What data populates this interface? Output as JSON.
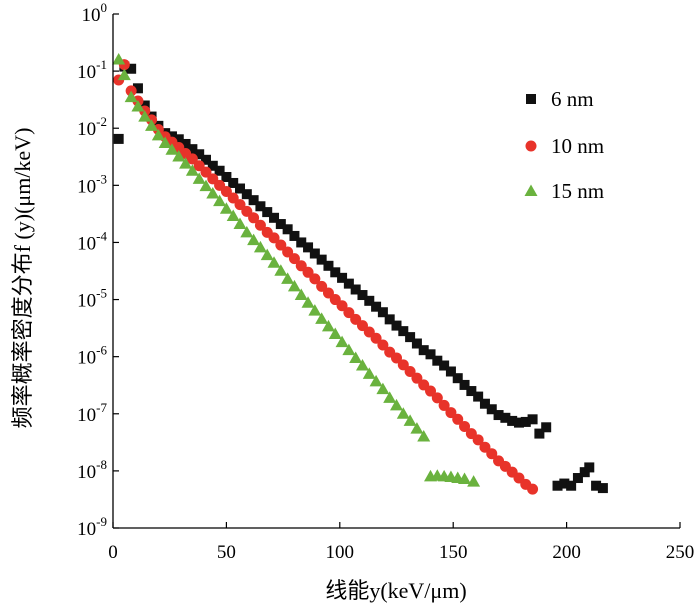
{
  "chart_data": {
    "type": "scatter",
    "xlabel": "线能y(keV/μm)",
    "ylabel": "频率概率密度分布f (y)(μm/keV)",
    "xlim": [
      0,
      250
    ],
    "ylim": [
      1e-09,
      1
    ],
    "yscale": "log",
    "grid": false,
    "legend_position": "top-right",
    "x_ticks": [
      0,
      50,
      100,
      150,
      200,
      250
    ],
    "y_ticks": [
      {
        "value": 1,
        "base": "10",
        "exp": "0"
      },
      {
        "value": 0.1,
        "base": "10",
        "exp": "-1"
      },
      {
        "value": 0.01,
        "base": "10",
        "exp": "-2"
      },
      {
        "value": 0.001,
        "base": "10",
        "exp": "-3"
      },
      {
        "value": 0.0001,
        "base": "10",
        "exp": "-4"
      },
      {
        "value": 1e-05,
        "base": "10",
        "exp": "-5"
      },
      {
        "value": 1e-06,
        "base": "10",
        "exp": "-6"
      },
      {
        "value": 1e-07,
        "base": "10",
        "exp": "-7"
      },
      {
        "value": 1e-08,
        "base": "10",
        "exp": "-8"
      },
      {
        "value": 1e-09,
        "base": "10",
        "exp": "-9"
      }
    ],
    "series": [
      {
        "name": "6 nm",
        "marker": "square",
        "color": "#111111",
        "points": [
          [
            2.5,
            0.0065
          ],
          [
            5,
            0.12
          ],
          [
            8,
            0.11
          ],
          [
            11,
            0.05
          ],
          [
            14,
            0.025
          ],
          [
            17,
            0.016
          ],
          [
            20,
            0.011
          ],
          [
            23,
            0.0082
          ],
          [
            26,
            0.0072
          ],
          [
            29,
            0.0064
          ],
          [
            32,
            0.0053
          ],
          [
            35,
            0.0043
          ],
          [
            38,
            0.0035
          ],
          [
            41,
            0.0028
          ],
          [
            44,
            0.0022
          ],
          [
            47,
            0.0018
          ],
          [
            50,
            0.0014
          ],
          [
            53,
            0.0011
          ],
          [
            56,
            0.00088
          ],
          [
            59,
            0.0007
          ],
          [
            62,
            0.00055
          ],
          [
            65,
            0.00043
          ],
          [
            68,
            0.00034
          ],
          [
            71,
            0.00027
          ],
          [
            74,
            0.00021
          ],
          [
            77,
            0.00017
          ],
          [
            80,
            0.00013
          ],
          [
            83,
            0.0001
          ],
          [
            86,
            8.2e-05
          ],
          [
            89,
            6.4e-05
          ],
          [
            92,
            5e-05
          ],
          [
            95,
            3.9e-05
          ],
          [
            98,
            3e-05
          ],
          [
            101,
            2.4e-05
          ],
          [
            104,
            1.9e-05
          ],
          [
            107,
            1.5e-05
          ],
          [
            110,
            1.2e-05
          ],
          [
            113,
            9.5e-06
          ],
          [
            116,
            7.5e-06
          ],
          [
            119,
            6e-06
          ],
          [
            122,
            4.5e-06
          ],
          [
            125,
            3.5e-06
          ],
          [
            128,
            2.8e-06
          ],
          [
            131,
            2.2e-06
          ],
          [
            134,
            1.7e-06
          ],
          [
            137,
            1.3e-06
          ],
          [
            140,
            1.1e-06
          ],
          [
            143,
            8.5e-07
          ],
          [
            146,
            7e-07
          ],
          [
            149,
            5.5e-07
          ],
          [
            152,
            4.2e-07
          ],
          [
            155,
            3.2e-07
          ],
          [
            158,
            2.5e-07
          ],
          [
            161,
            2e-07
          ],
          [
            164,
            1.5e-07
          ],
          [
            167,
            1.2e-07
          ],
          [
            170,
            9.5e-08
          ],
          [
            173,
            8.5e-08
          ],
          [
            176,
            7.5e-08
          ],
          [
            179,
            7e-08
          ],
          [
            182,
            7.2e-08
          ],
          [
            185,
            8e-08
          ],
          [
            188,
            4.5e-08
          ],
          [
            191,
            5.8e-08
          ],
          [
            196,
            5.5e-09
          ],
          [
            199,
            6e-09
          ],
          [
            202,
            5.5e-09
          ],
          [
            205,
            7.5e-09
          ],
          [
            208,
            9.5e-09
          ],
          [
            210,
            1.15e-08
          ],
          [
            213,
            5.5e-09
          ],
          [
            216,
            5e-09
          ]
        ]
      },
      {
        "name": "10 nm",
        "marker": "circle",
        "color": "#e8332a",
        "points": [
          [
            2.5,
            0.07
          ],
          [
            5,
            0.13
          ],
          [
            8,
            0.045
          ],
          [
            11,
            0.03
          ],
          [
            14,
            0.02
          ],
          [
            17,
            0.014
          ],
          [
            20,
            0.0095
          ],
          [
            23,
            0.0071
          ],
          [
            26,
            0.0057
          ],
          [
            29,
            0.0046
          ],
          [
            32,
            0.0036
          ],
          [
            35,
            0.0029
          ],
          [
            38,
            0.0022
          ],
          [
            41,
            0.0017
          ],
          [
            44,
            0.0013
          ],
          [
            47,
            0.001
          ],
          [
            50,
            0.00078
          ],
          [
            53,
            0.0006
          ],
          [
            56,
            0.00046
          ],
          [
            59,
            0.00035
          ],
          [
            62,
            0.00027
          ],
          [
            65,
            0.0002
          ],
          [
            68,
            0.00015
          ],
          [
            71,
            0.00012
          ],
          [
            74,
            9e-05
          ],
          [
            77,
            6.8e-05
          ],
          [
            80,
            5.2e-05
          ],
          [
            83,
            3.9e-05
          ],
          [
            86,
            3e-05
          ],
          [
            89,
            2.3e-05
          ],
          [
            92,
            1.7e-05
          ],
          [
            95,
            1.3e-05
          ],
          [
            98,
            1e-05
          ],
          [
            101,
            7.8e-06
          ],
          [
            104,
            5.9e-06
          ],
          [
            107,
            4.5e-06
          ],
          [
            110,
            3.5e-06
          ],
          [
            113,
            2.7e-06
          ],
          [
            116,
            2.1e-06
          ],
          [
            119,
            1.6e-06
          ],
          [
            122,
            1.2e-06
          ],
          [
            125,
            9.5e-07
          ],
          [
            128,
            7.2e-07
          ],
          [
            131,
            5.5e-07
          ],
          [
            134,
            4.2e-07
          ],
          [
            137,
            3.2e-07
          ],
          [
            140,
            2.5e-07
          ],
          [
            143,
            1.9e-07
          ],
          [
            146,
            1.4e-07
          ],
          [
            149,
            1.05e-07
          ],
          [
            152,
            8e-08
          ],
          [
            155,
            6e-08
          ],
          [
            158,
            4.5e-08
          ],
          [
            161,
            3.5e-08
          ],
          [
            164,
            2.6e-08
          ],
          [
            167,
            2e-08
          ],
          [
            170,
            1.5e-08
          ],
          [
            173,
            1.2e-08
          ],
          [
            176,
            9.5e-09
          ],
          [
            179,
            7.5e-09
          ],
          [
            182,
            5.8e-09
          ],
          [
            185,
            4.8e-09
          ]
        ]
      },
      {
        "name": "15 nm",
        "marker": "triangle",
        "color": "#6ab23e",
        "points": [
          [
            2.5,
            0.16
          ],
          [
            5,
            0.085
          ],
          [
            8,
            0.035
          ],
          [
            11,
            0.024
          ],
          [
            14,
            0.016
          ],
          [
            17,
            0.011
          ],
          [
            20,
            0.0075
          ],
          [
            23,
            0.0055
          ],
          [
            26,
            0.0042
          ],
          [
            29,
            0.0032
          ],
          [
            32,
            0.0024
          ],
          [
            35,
            0.0018
          ],
          [
            38,
            0.0013
          ],
          [
            41,
            0.00097
          ],
          [
            44,
            0.00072
          ],
          [
            47,
            0.00053
          ],
          [
            50,
            0.00039
          ],
          [
            53,
            0.00029
          ],
          [
            56,
            0.00021
          ],
          [
            59,
            0.00015
          ],
          [
            62,
            0.00011
          ],
          [
            65,
            8.2e-05
          ],
          [
            68,
            6e-05
          ],
          [
            71,
            4.4e-05
          ],
          [
            74,
            3.2e-05
          ],
          [
            77,
            2.3e-05
          ],
          [
            80,
            1.7e-05
          ],
          [
            83,
            1.2e-05
          ],
          [
            86,
            8.8e-06
          ],
          [
            89,
            6.4e-06
          ],
          [
            92,
            4.6e-06
          ],
          [
            95,
            3.4e-06
          ],
          [
            98,
            2.5e-06
          ],
          [
            101,
            1.8e-06
          ],
          [
            104,
            1.3e-06
          ],
          [
            107,
            9.5e-07
          ],
          [
            110,
            7e-07
          ],
          [
            113,
            5e-07
          ],
          [
            116,
            3.7e-07
          ],
          [
            119,
            2.7e-07
          ],
          [
            122,
            1.9e-07
          ],
          [
            125,
            1.4e-07
          ],
          [
            128,
            1e-07
          ],
          [
            131,
            7.5e-08
          ],
          [
            134,
            5.5e-08
          ],
          [
            137,
            4e-08
          ],
          [
            140,
            8e-09
          ],
          [
            143,
            8.2e-09
          ],
          [
            146,
            8e-09
          ],
          [
            149,
            7.8e-09
          ],
          [
            152,
            7.5e-09
          ],
          [
            155,
            7.2e-09
          ],
          [
            159,
            6.5e-09
          ]
        ]
      }
    ]
  }
}
